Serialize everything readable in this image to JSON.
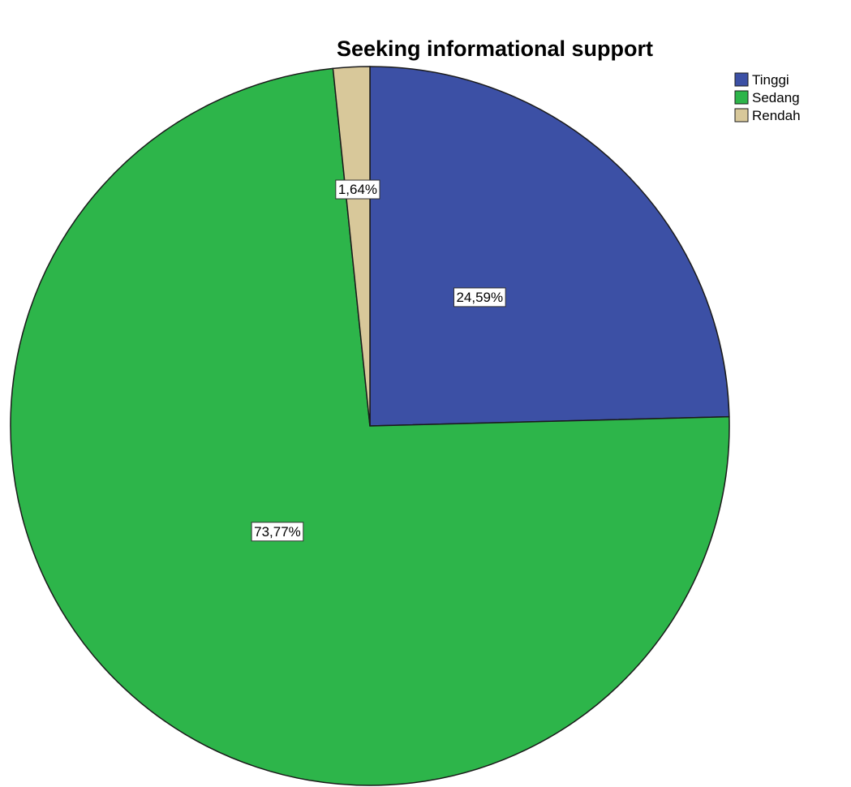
{
  "chart_data": {
    "type": "pie",
    "title": "Seeking informational support",
    "categories": [
      "Tinggi",
      "Sedang",
      "Rendah"
    ],
    "values": [
      24.59,
      73.77,
      1.64
    ],
    "labels": [
      "24,59%",
      "73,77%",
      "1,64%"
    ],
    "colors": [
      "#3c50a5",
      "#2db54a",
      "#d8c89a"
    ],
    "start_angle_deg": 0,
    "direction": "clockwise",
    "legend": {
      "position": "top-right",
      "entries": [
        "Tinggi",
        "Sedang",
        "Rendah"
      ]
    }
  }
}
